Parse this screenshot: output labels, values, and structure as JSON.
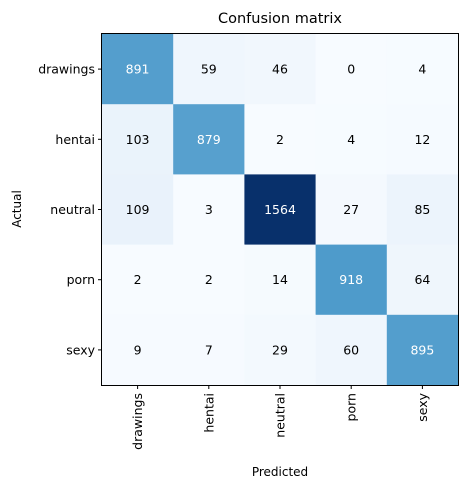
{
  "chart_data": {
    "type": "heatmap",
    "title": "Confusion matrix",
    "xlabel": "Predicted",
    "ylabel": "Actual",
    "x_categories": [
      "drawings",
      "hentai",
      "neutral",
      "porn",
      "sexy"
    ],
    "y_categories": [
      "drawings",
      "hentai",
      "neutral",
      "porn",
      "sexy"
    ],
    "values": [
      [
        891,
        59,
        46,
        0,
        4
      ],
      [
        103,
        879,
        2,
        4,
        12
      ],
      [
        109,
        3,
        1564,
        27,
        85
      ],
      [
        2,
        2,
        14,
        918,
        64
      ],
      [
        9,
        7,
        29,
        60,
        895
      ]
    ],
    "colormap": "Blues",
    "value_range": [
      0,
      1564
    ],
    "grid": false,
    "legend": "none"
  }
}
